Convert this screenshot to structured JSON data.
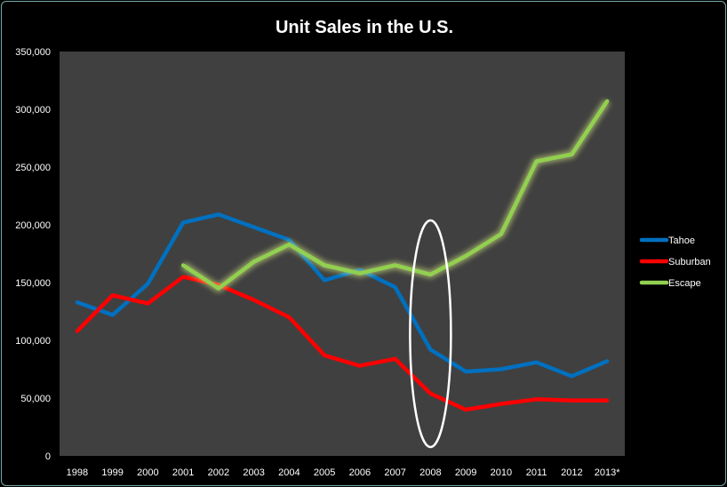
{
  "chart_data": {
    "type": "line",
    "title": "Unit Sales in the U.S.",
    "xlabel": "",
    "ylabel": "",
    "categories": [
      "1998",
      "1999",
      "2000",
      "2001",
      "2002",
      "2003",
      "2004",
      "2005",
      "2006",
      "2007",
      "2008",
      "2009",
      "2010",
      "2011",
      "2012",
      "2013*"
    ],
    "ylim": [
      0,
      350000
    ],
    "yticks": [
      0,
      50000,
      100000,
      150000,
      200000,
      250000,
      300000,
      350000
    ],
    "ytick_labels": [
      "0",
      "50,000",
      "100,000",
      "150,000",
      "200,000",
      "250,000",
      "300,000",
      "350,000"
    ],
    "grid": false,
    "legend": "right",
    "series": [
      {
        "name": "Tahoe",
        "color": "#0070c0",
        "values": [
          133000,
          122000,
          149000,
          202000,
          209000,
          198000,
          187000,
          152000,
          161000,
          146000,
          92000,
          73000,
          75000,
          81000,
          69000,
          82000
        ]
      },
      {
        "name": "Suburban",
        "color": "#ff0000",
        "values": [
          108000,
          139000,
          132000,
          155000,
          148000,
          135000,
          120000,
          87000,
          78000,
          84000,
          54000,
          40000,
          45000,
          49000,
          48000,
          48000
        ]
      },
      {
        "name": "Escape",
        "color": "#92d050",
        "glow": true,
        "values": [
          null,
          null,
          null,
          165000,
          145000,
          168000,
          183000,
          165000,
          158000,
          165000,
          157000,
          173000,
          192000,
          255000,
          261000,
          307000
        ]
      }
    ],
    "annotations": [
      {
        "type": "ellipse",
        "color": "#ffffff",
        "around_category": "2008"
      }
    ],
    "colors": {
      "background": "#000000",
      "plot_area": "#404040",
      "text": "#ffffff"
    }
  }
}
